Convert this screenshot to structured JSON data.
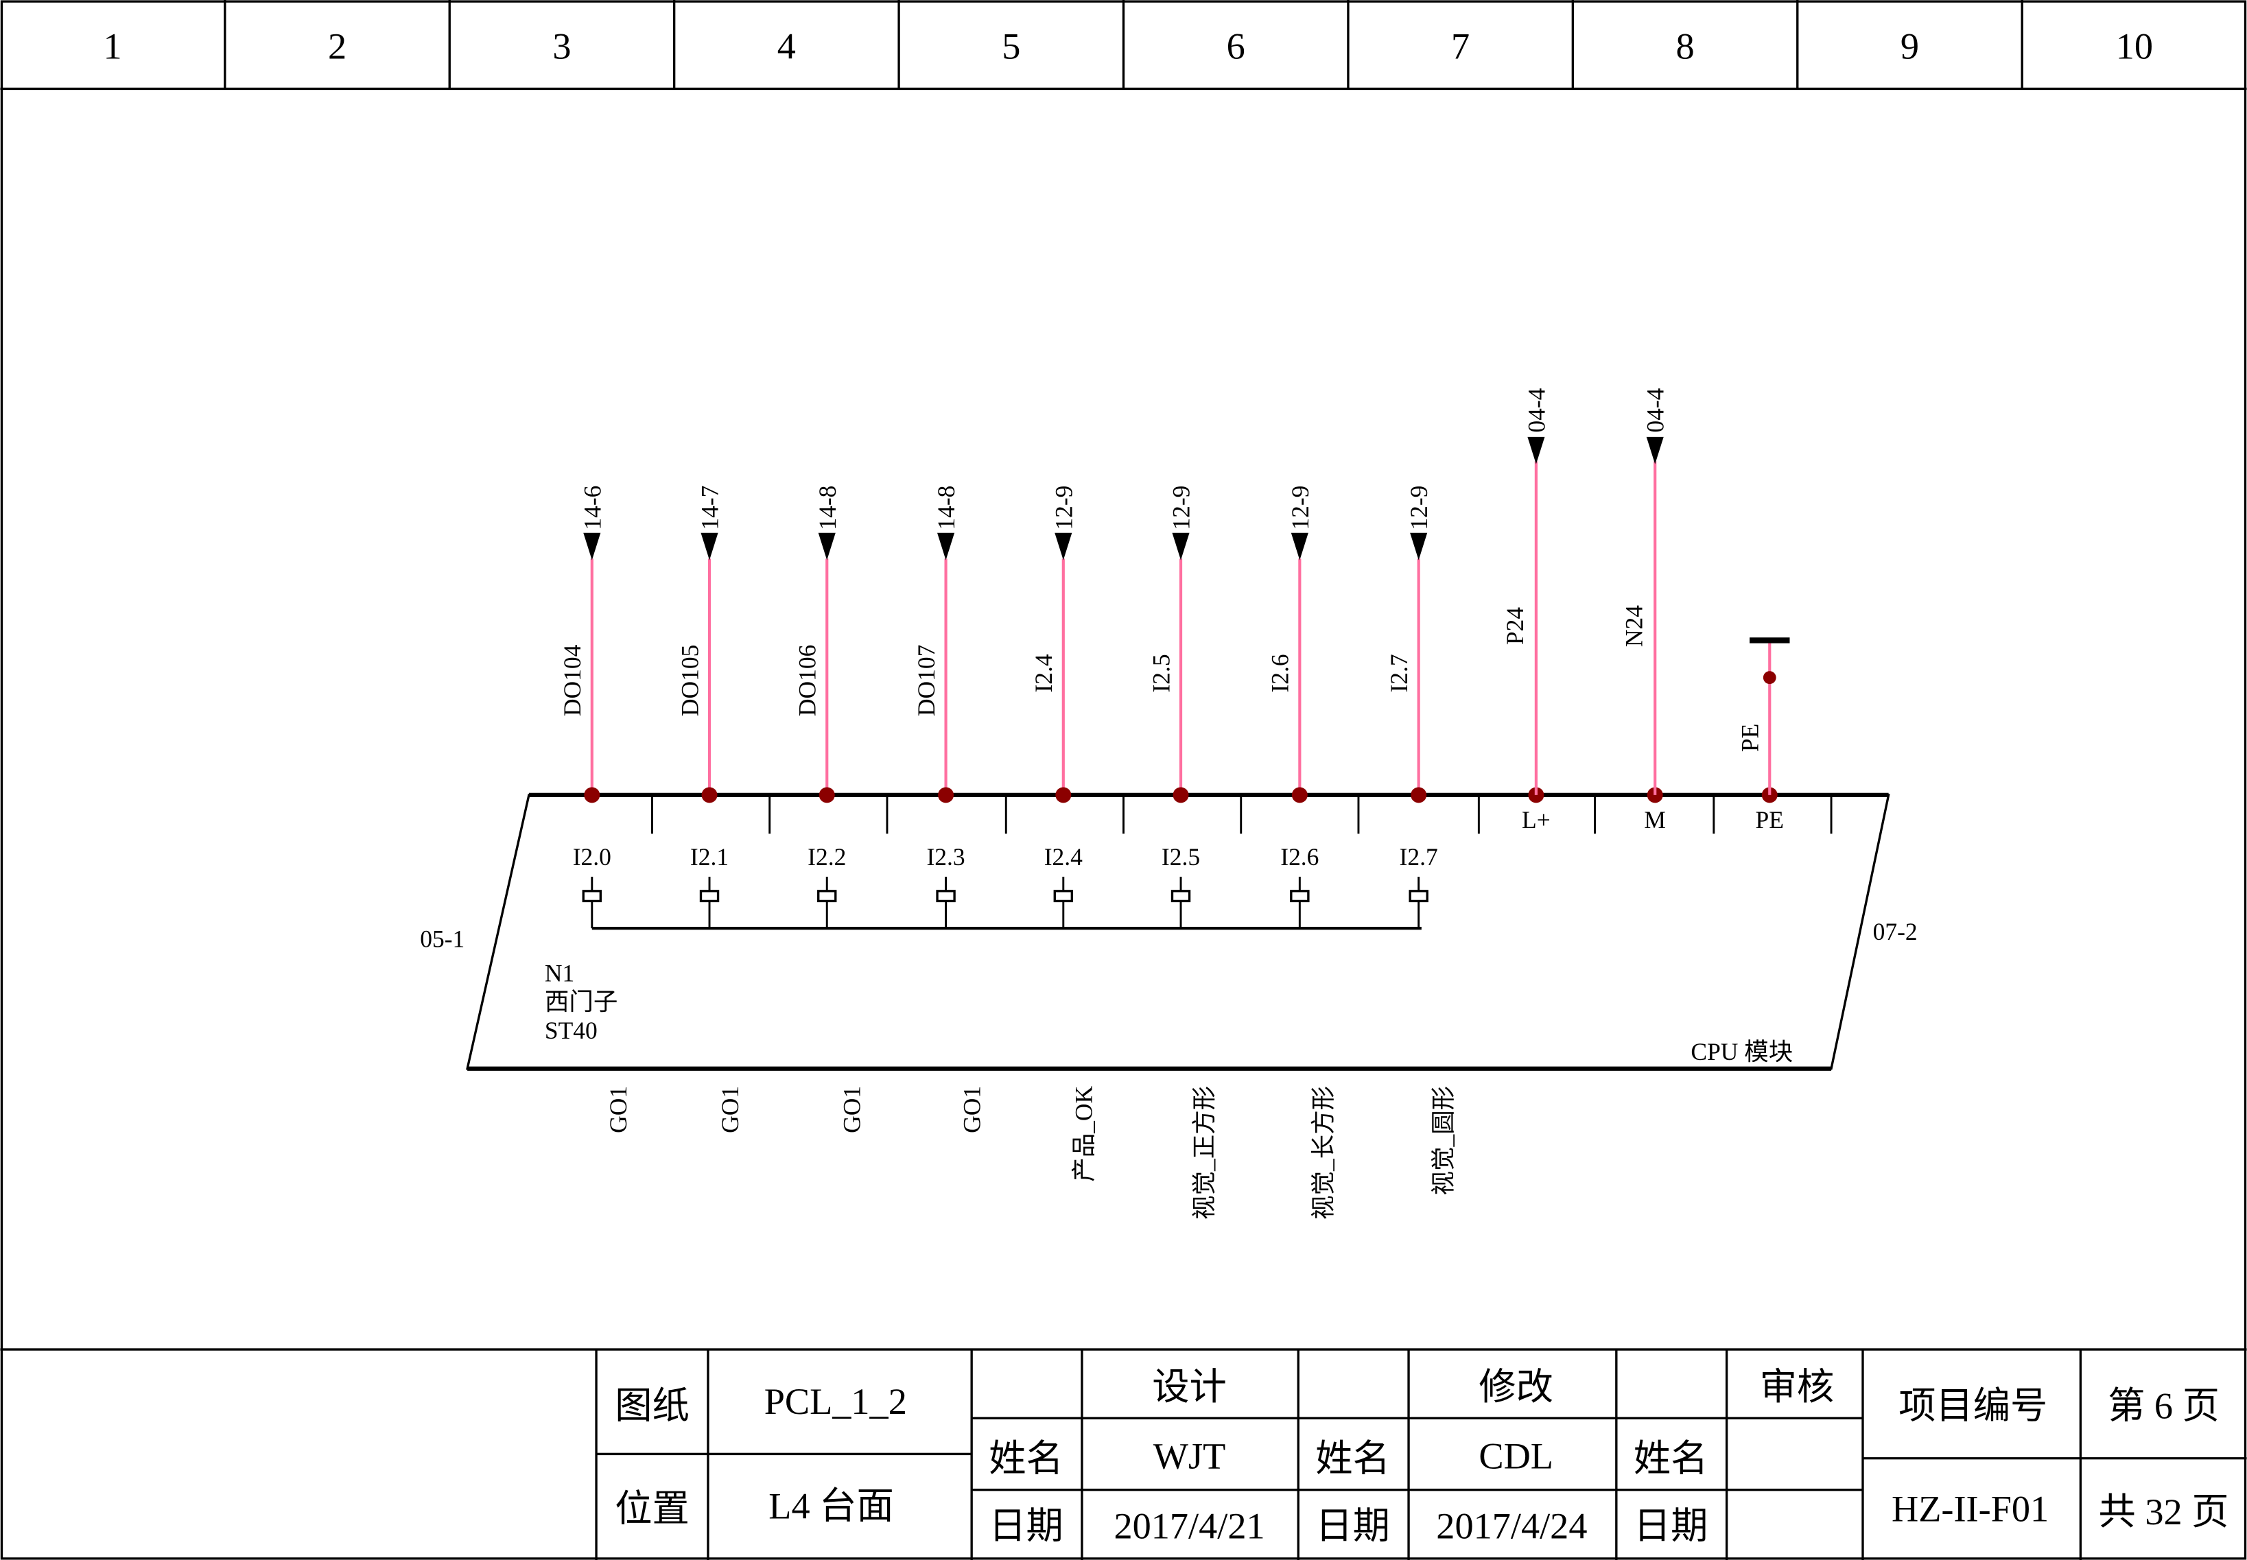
{
  "column_headers": [
    "1",
    "2",
    "3",
    "4",
    "5",
    "6",
    "7",
    "8",
    "9",
    "10"
  ],
  "colors": {
    "wire": "#FF6FA0",
    "node": "#8B0000",
    "line": "#000000"
  },
  "module": {
    "left_ref": "05-1",
    "right_ref": "07-2",
    "id": "N1",
    "vendor": "西门子",
    "model": "ST40",
    "title": "CPU 模块"
  },
  "pins": [
    {
      "terminal": "I2.0",
      "wire": "DO104",
      "ref": "14-6",
      "note": "GO1"
    },
    {
      "terminal": "I2.1",
      "wire": "DO105",
      "ref": "14-7",
      "note": "GO1"
    },
    {
      "terminal": "I2.2",
      "wire": "DO106",
      "ref": "14-8",
      "note": "GO1"
    },
    {
      "terminal": "I2.3",
      "wire": "DO107",
      "ref": "14-8",
      "note": "GO1"
    },
    {
      "terminal": "I2.4",
      "wire": "I2.4",
      "ref": "12-9",
      "note": "产品_OK"
    },
    {
      "terminal": "I2.5",
      "wire": "I2.5",
      "ref": "12-9",
      "note": "视觉_正方形"
    },
    {
      "terminal": "I2.6",
      "wire": "I2.6",
      "ref": "12-9",
      "note": "视觉_长方形"
    },
    {
      "terminal": "I2.7",
      "wire": "I2.7",
      "ref": "12-9",
      "note": "视觉_圆形"
    }
  ],
  "power_pins": [
    {
      "terminal": "L+",
      "wire": "P24",
      "ref": "04-4"
    },
    {
      "terminal": "M",
      "wire": "N24",
      "ref": "04-4"
    },
    {
      "terminal": "PE",
      "wire": "PE",
      "ref": ""
    }
  ],
  "title_block": {
    "drawing_label": "图纸",
    "drawing_value": "PCL_1_2",
    "location_label": "位置",
    "location_value": "L4 台面",
    "design_label": "设计",
    "modify_label": "修改",
    "review_label": "审核",
    "name_label": "姓名",
    "date_label": "日期",
    "design_name": "WJT",
    "design_date": "2017/4/21",
    "modify_name": "CDL",
    "modify_date": "2017/4/24",
    "project_label": "项目编号",
    "project_value": "HZ-II-F01",
    "page": "第 6 页",
    "total": "共 32 页"
  }
}
